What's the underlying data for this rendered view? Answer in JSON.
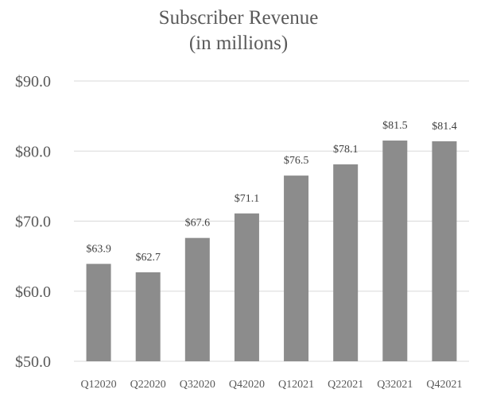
{
  "chart_data": {
    "type": "bar",
    "title_lines": [
      "Subscriber Revenue",
      "(in millions)"
    ],
    "categories": [
      "Q12020",
      "Q22020",
      "Q32020",
      "Q42020",
      "Q12021",
      "Q22021",
      "Q32021",
      "Q42021"
    ],
    "values": [
      63.9,
      62.7,
      67.6,
      71.1,
      76.5,
      78.1,
      81.5,
      81.4
    ],
    "data_labels": [
      "$63.9",
      "$62.7",
      "$67.6",
      "$71.1",
      "$76.5",
      "$78.1",
      "$81.5",
      "$81.4"
    ],
    "yticks": [
      50,
      60,
      70,
      80,
      90
    ],
    "ytick_labels": [
      "$50.0",
      "$60.0",
      "$70.0",
      "$80.0",
      "$90.0"
    ],
    "ylim": [
      50,
      90
    ],
    "xlabel": "",
    "ylabel": "",
    "grid": true,
    "legend": "none",
    "bar_color": "#8c8c8c",
    "grid_color": "#d9d9d9",
    "text_color": "#595959"
  }
}
